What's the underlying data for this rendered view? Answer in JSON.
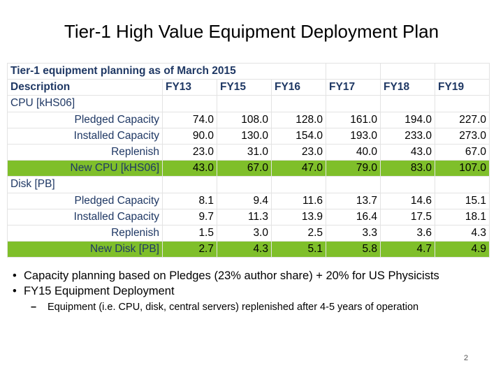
{
  "slide": {
    "title": "Tier-1 High Value Equipment Deployment Plan",
    "page_number": "2"
  },
  "table": {
    "title": "Tier-1 equipment planning as of March 2015",
    "header": {
      "description": "Description",
      "years": [
        "FY13",
        "FY15",
        "FY16",
        "FY17",
        "FY18",
        "FY19"
      ]
    },
    "sections": [
      {
        "label": "CPU [kHS06]",
        "rows": [
          {
            "label": "Pledged Capacity",
            "values": [
              "74.0",
              "108.0",
              "128.0",
              "161.0",
              "194.0",
              "227.0"
            ],
            "highlight": false
          },
          {
            "label": "Installed Capacity",
            "values": [
              "90.0",
              "130.0",
              "154.0",
              "193.0",
              "233.0",
              "273.0"
            ],
            "highlight": false
          },
          {
            "label": "Replenish",
            "values": [
              "23.0",
              "31.0",
              "23.0",
              "40.0",
              "43.0",
              "67.0"
            ],
            "highlight": false
          },
          {
            "label": "New CPU [kHS06]",
            "values": [
              "43.0",
              "67.0",
              "47.0",
              "79.0",
              "83.0",
              "107.0"
            ],
            "highlight": true
          }
        ]
      },
      {
        "label": "Disk [PB]",
        "rows": [
          {
            "label": "Pledged Capacity",
            "values": [
              "8.1",
              "9.4",
              "11.6",
              "13.7",
              "14.6",
              "15.1"
            ],
            "highlight": false
          },
          {
            "label": "Installed Capacity",
            "values": [
              "9.7",
              "11.3",
              "13.9",
              "16.4",
              "17.5",
              "18.1"
            ],
            "highlight": false
          },
          {
            "label": "Replenish",
            "values": [
              "1.5",
              "3.0",
              "2.5",
              "3.3",
              "3.6",
              "4.3"
            ],
            "highlight": false
          },
          {
            "label": "New Disk [PB]",
            "values": [
              "2.7",
              "4.3",
              "5.1",
              "5.8",
              "4.7",
              "4.9"
            ],
            "highlight": true
          }
        ]
      }
    ]
  },
  "bullets": {
    "items": [
      "Capacity planning based on Pledges (23% author share) + 20% for US Physicists",
      "FY15 Equipment Deployment"
    ],
    "sub_items": [
      "Equipment (i.e. CPU, disk, central servers) replenished after 4-5 years of operation"
    ],
    "bullet_char": "•",
    "dash_char": "–"
  },
  "colors": {
    "highlight_row": "#7fbf2a",
    "header_text": "#1f3864"
  }
}
